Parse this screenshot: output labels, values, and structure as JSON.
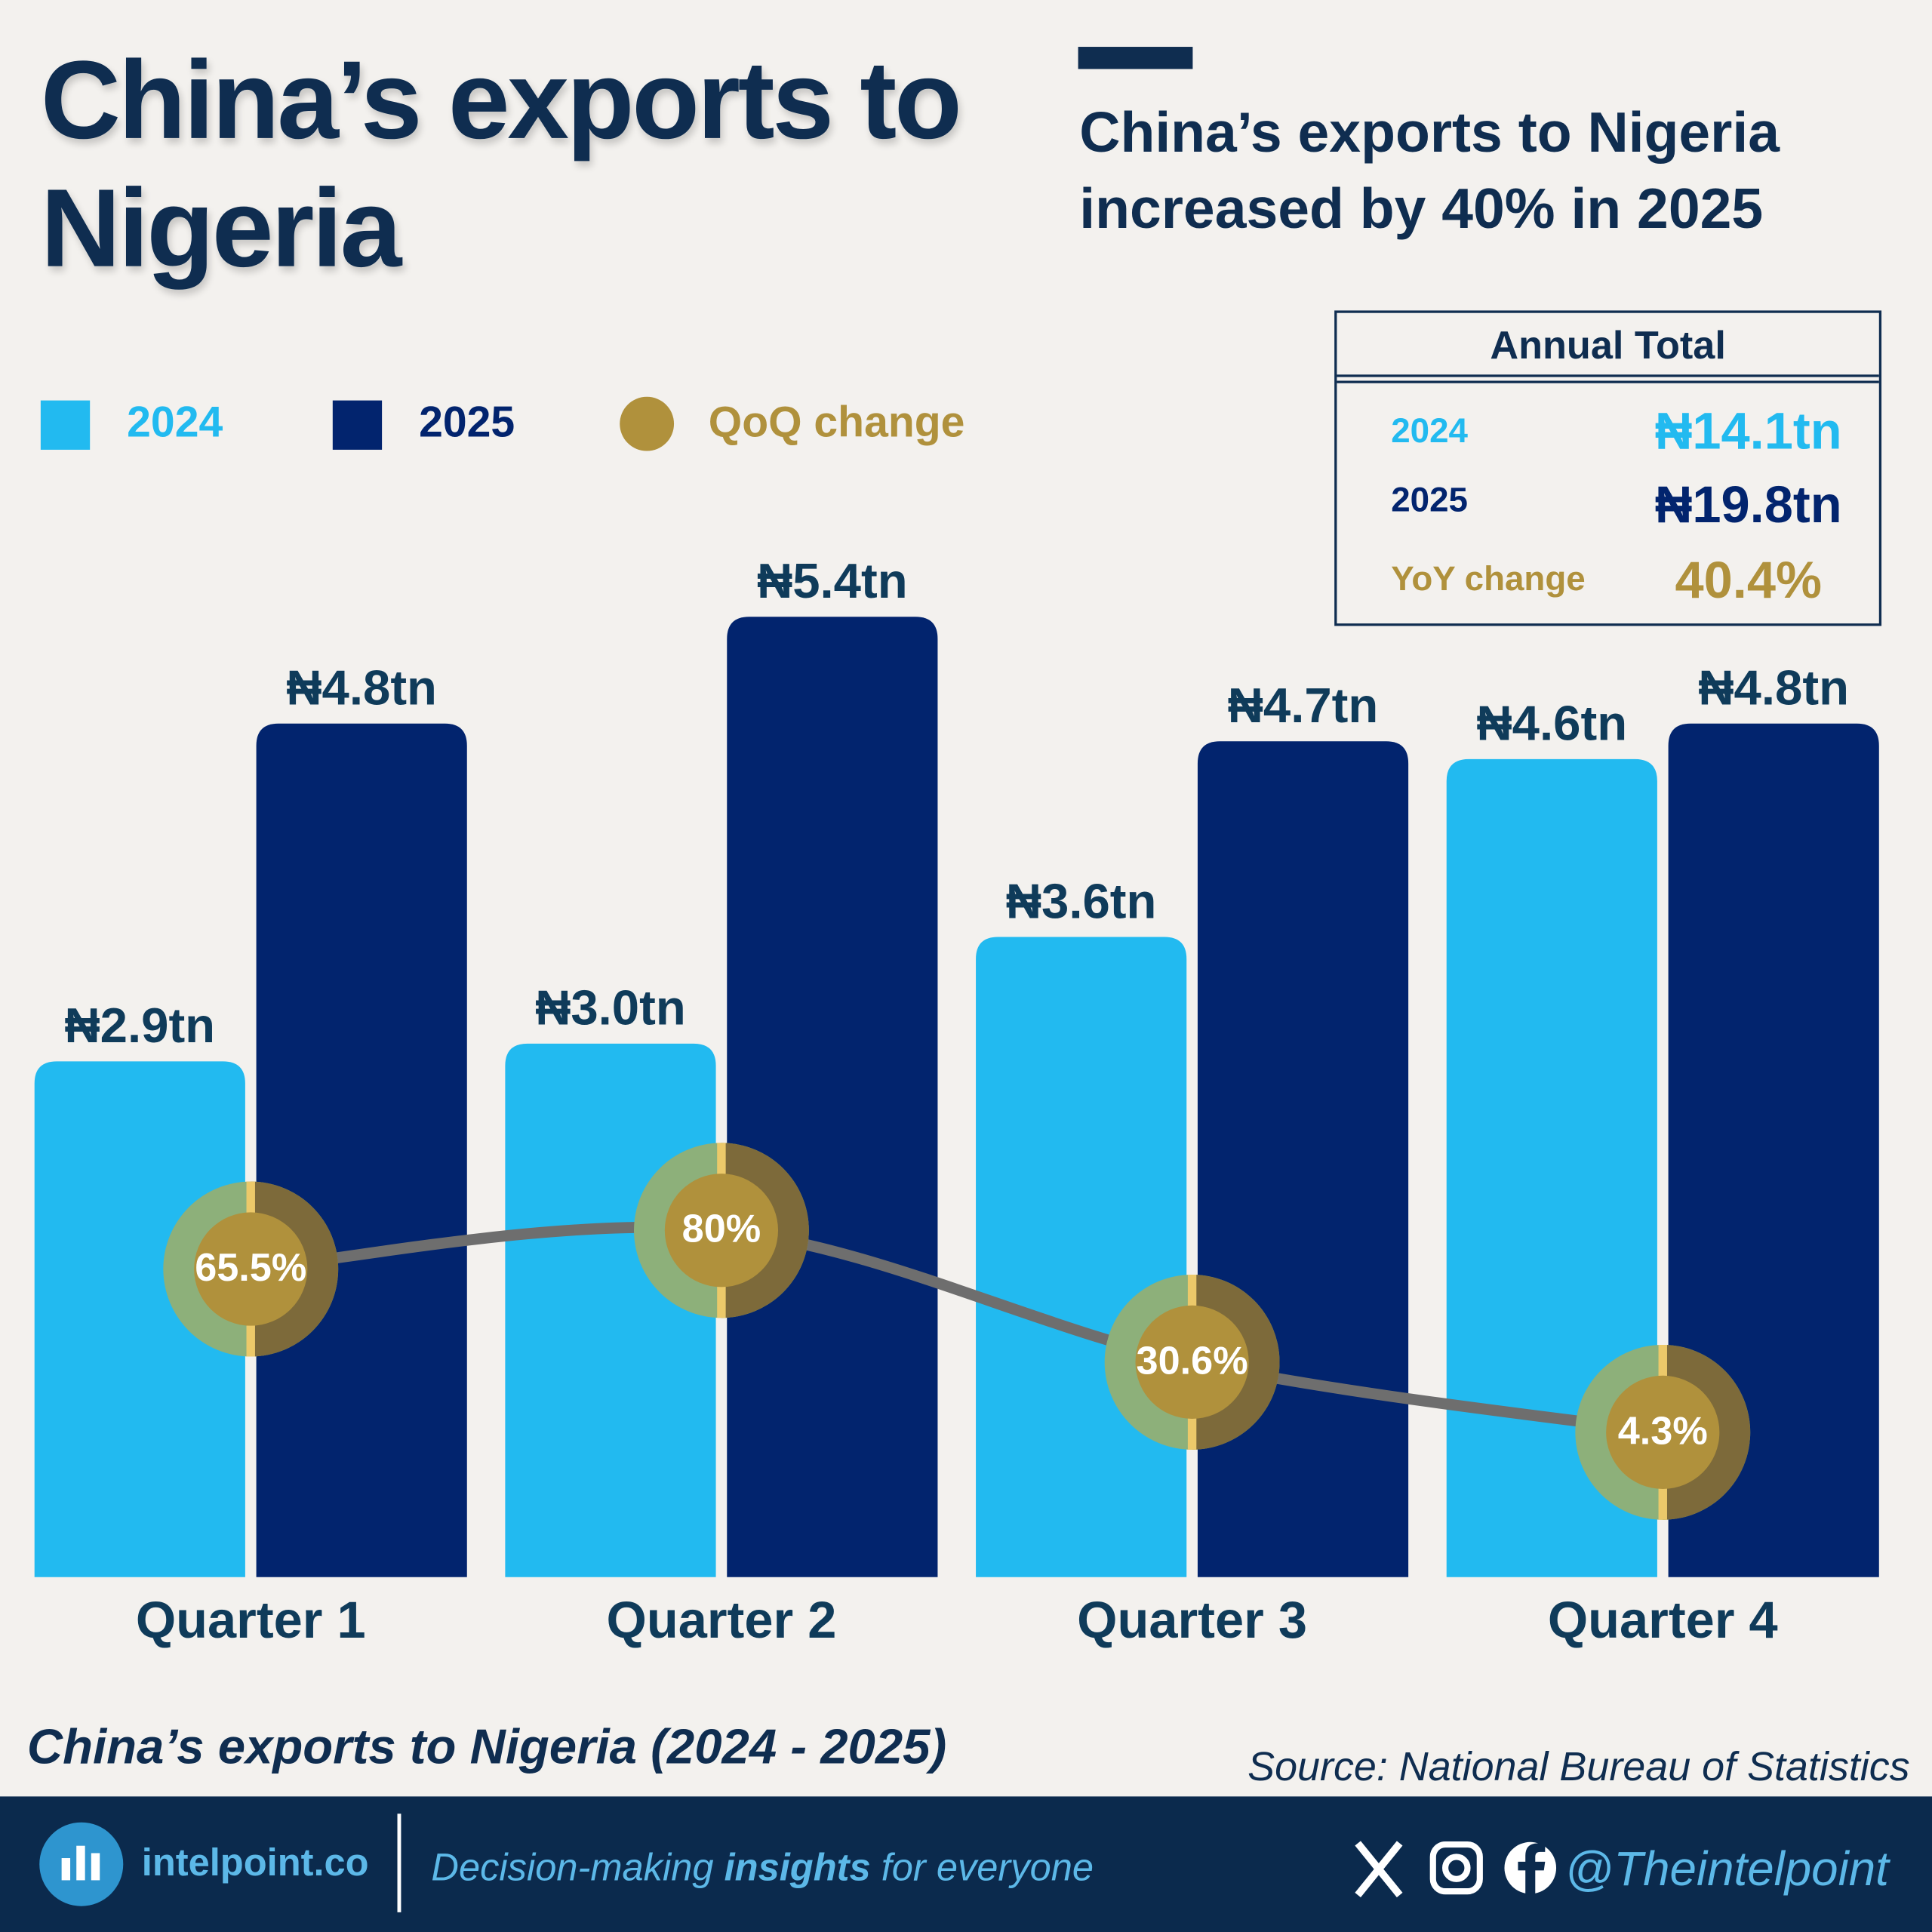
{
  "chart_data": {
    "type": "bar",
    "title": "China’s exports to Nigeria",
    "subtitle": "China’s exports to Nigeria increased by 40% in 2025",
    "caption": "China’s exports to Nigeria (2024 - 2025)",
    "source": "Source: National Bureau of Statistics",
    "categories": [
      "Quarter 1",
      "Quarter 2",
      "Quarter 3",
      "Quarter 4"
    ],
    "ylim": [
      0,
      6
    ],
    "y2lim": [
      -50,
      350
    ],
    "series": [
      {
        "name": "2024",
        "color": "#22baf0",
        "values": [
          2.9,
          3.0,
          3.6,
          4.6
        ],
        "value_labels": [
          "₦2.9tn",
          "₦3.0tn",
          "₦3.6tn",
          "₦4.6tn"
        ]
      },
      {
        "name": "2025",
        "color": "#02246e",
        "values": [
          4.8,
          5.4,
          4.7,
          4.8
        ],
        "value_labels": [
          "₦4.8tn",
          "₦5.4tn",
          "₦4.7tn",
          "₦4.8tn"
        ]
      },
      {
        "name": "QoQ change",
        "type": "line",
        "axis": "y2",
        "color": "#b0913c",
        "values": [
          65.5,
          80,
          30.6,
          4.3
        ],
        "value_labels": [
          "65.5%",
          "80%",
          "30.6%",
          "4.3%"
        ]
      }
    ],
    "annual_total": {
      "title": "Annual Total",
      "rows": [
        {
          "label": "2024",
          "value": "₦14.1tn"
        },
        {
          "label": "2025",
          "value": "₦19.8tn"
        },
        {
          "label": "YoY change",
          "value": "40.4%"
        }
      ]
    }
  },
  "footer": {
    "brand": "intelpoint.co",
    "tagline": [
      "Decision-making ",
      "insights",
      " for everyone"
    ],
    "handle": "@Theintelpoint"
  }
}
